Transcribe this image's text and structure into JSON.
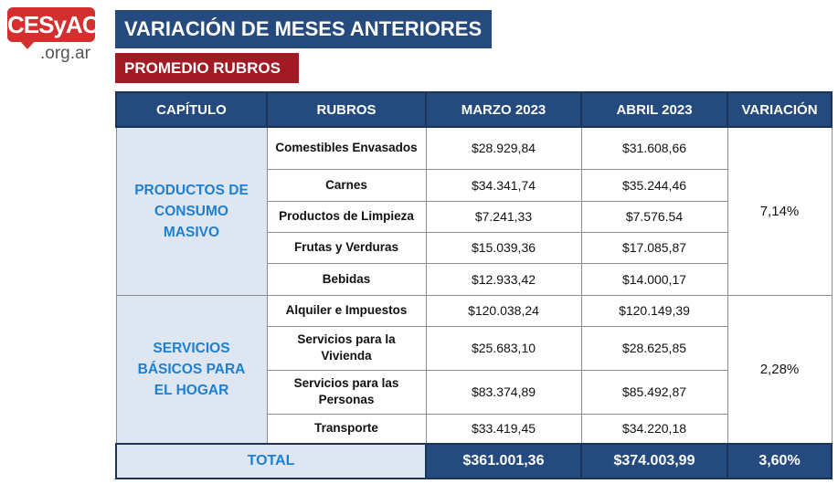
{
  "logo": {
    "brand": "CESyAC",
    "domain": ".org.ar"
  },
  "title": "VARIACIÓN DE MESES ANTERIORES",
  "subtitle": "PROMEDIO RUBROS",
  "columns": [
    "CAPÍTULO",
    "RUBROS",
    "MARZO 2023",
    "ABRIL 2023",
    "VARIACIÓN"
  ],
  "groups": [
    {
      "capitulo": "PRODUCTOS DE CONSUMO MASIVO",
      "variacion": "7,14%",
      "rows": [
        {
          "rubro": "Comestibles Envasados",
          "marzo": "$28.929,84",
          "abril": "$31.608,66"
        },
        {
          "rubro": "Carnes",
          "marzo": "$34.341,74",
          "abril": "$35.244,46"
        },
        {
          "rubro": "Productos de Limpieza",
          "marzo": "$7.241,33",
          "abril": "$7.576.54"
        },
        {
          "rubro": "Frutas y Verduras",
          "marzo": "$15.039,36",
          "abril": "$17.085,87"
        },
        {
          "rubro": "Bebidas",
          "marzo": "$12.933,42",
          "abril": "$14.000,17"
        }
      ]
    },
    {
      "capitulo": "SERVICIOS BÁSICOS PARA EL HOGAR",
      "variacion": "2,28%",
      "rows": [
        {
          "rubro": "Alquiler e Impuestos",
          "marzo": "$120.038,24",
          "abril": "$120.149,39"
        },
        {
          "rubro": "Servicios para la Vivienda",
          "marzo": "$25.683,10",
          "abril": "$28.625,85"
        },
        {
          "rubro": "Servicios para las Personas",
          "marzo": "$83.374,89",
          "abril": "$85.492,87"
        },
        {
          "rubro": "Transporte",
          "marzo": "$33.419,45",
          "abril": "$34.220,18"
        }
      ]
    }
  ],
  "total": {
    "label": "TOTAL",
    "marzo": "$361.001,36",
    "abril": "$374.003,99",
    "variacion": "3,60%"
  }
}
